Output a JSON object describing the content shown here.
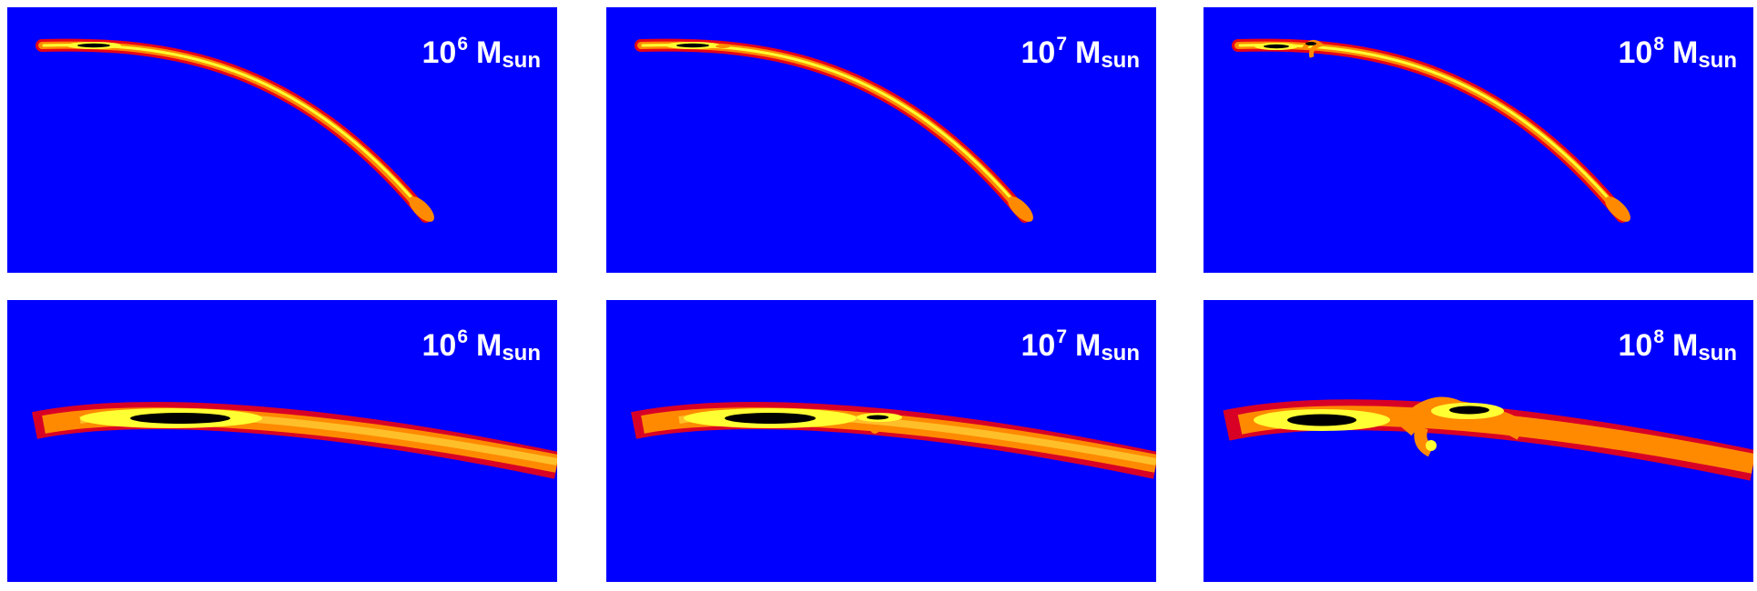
{
  "colors": {
    "background": "#0000ff",
    "ridge_outer": "#ff0000",
    "ridge_mid": "#ff8a00",
    "ridge_core": "#ffff33",
    "ridge_peak": "#000000"
  },
  "panels": [
    {
      "row": "top",
      "base": "10",
      "exponent": "6",
      "unit_main": "M",
      "unit_sub": "sun"
    },
    {
      "row": "top",
      "base": "10",
      "exponent": "7",
      "unit_main": "M",
      "unit_sub": "sun"
    },
    {
      "row": "top",
      "base": "10",
      "exponent": "8",
      "unit_main": "M",
      "unit_sub": "sun"
    },
    {
      "row": "bottom",
      "base": "10",
      "exponent": "6",
      "unit_main": "M",
      "unit_sub": "sun"
    },
    {
      "row": "bottom",
      "base": "10",
      "exponent": "7",
      "unit_main": "M",
      "unit_sub": "sun"
    },
    {
      "row": "bottom",
      "base": "10",
      "exponent": "8",
      "unit_main": "M",
      "unit_sub": "sun"
    }
  ]
}
